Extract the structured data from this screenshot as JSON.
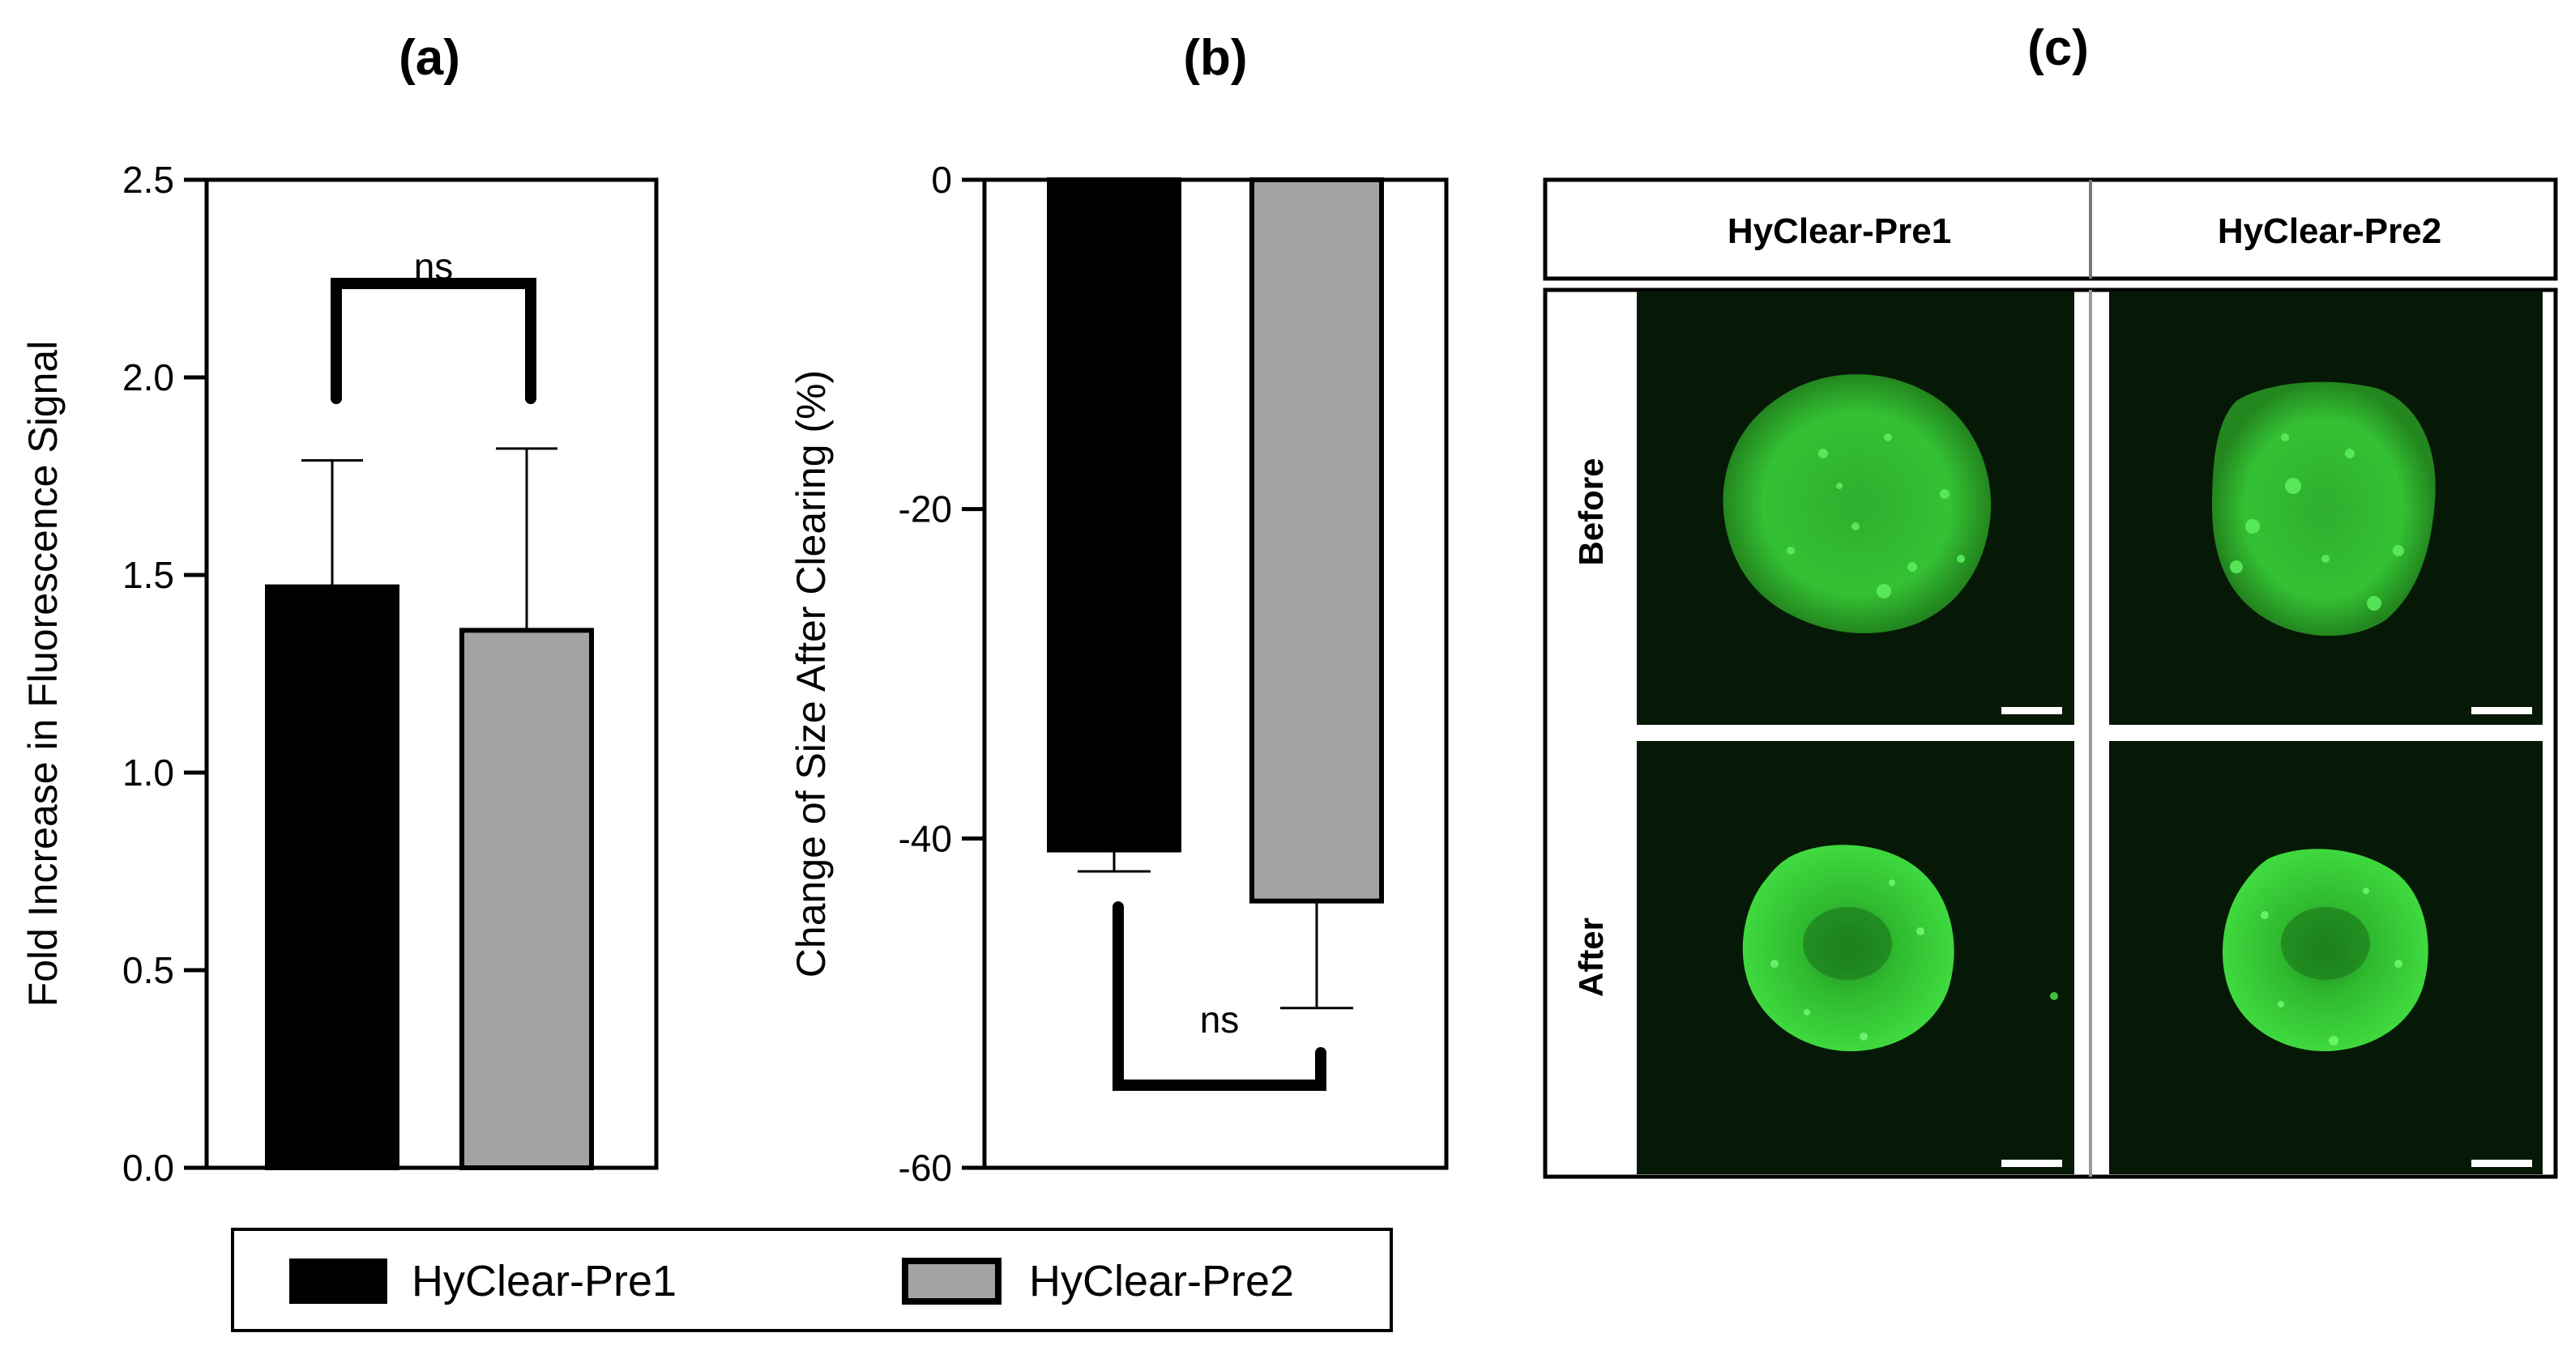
{
  "panels": {
    "a": "(a)",
    "b": "(b)",
    "c": "(c)"
  },
  "colors": {
    "pre1": "#000000",
    "pre2": "#a3a3a6",
    "fluorescence_bg": "#061906",
    "fluorescence": "#35c935",
    "scale_bar": "#ffffff"
  },
  "chart_data": [
    {
      "panel": "a",
      "type": "bar",
      "categories": [
        "HyClear-Pre1",
        "HyClear-Pre2"
      ],
      "values": [
        1.47,
        1.36
      ],
      "error_bars_upper": [
        0.32,
        0.46
      ],
      "ylabel": "Fold Increase in Fluorescence Signal",
      "ylim": [
        0,
        2.5
      ],
      "yticks": [
        "0.0",
        "0.5",
        "1.0",
        "1.5",
        "2.0",
        "2.5"
      ],
      "annotation": "ns",
      "grid": false
    },
    {
      "panel": "b",
      "type": "bar",
      "categories": [
        "HyClear-Pre1",
        "HyClear-Pre2"
      ],
      "values": [
        -40.7,
        -43.8
      ],
      "error_bars_lower": [
        1.3,
        6.5
      ],
      "ylabel": "Change of  Size After Clearing (%)",
      "ylim": [
        -60,
        0
      ],
      "yticks": [
        "0",
        "-20",
        "-40",
        "-60"
      ],
      "annotation": "ns",
      "grid": false
    }
  ],
  "legend": {
    "items": [
      {
        "label": "HyClear-Pre1",
        "color": "#000000"
      },
      {
        "label": "HyClear-Pre2",
        "color": "#a3a3a6"
      }
    ],
    "placement": "bottom"
  },
  "micrographs": {
    "columns": [
      "HyClear-Pre1",
      "HyClear-Pre2"
    ],
    "rows": [
      "Before",
      "After"
    ]
  }
}
